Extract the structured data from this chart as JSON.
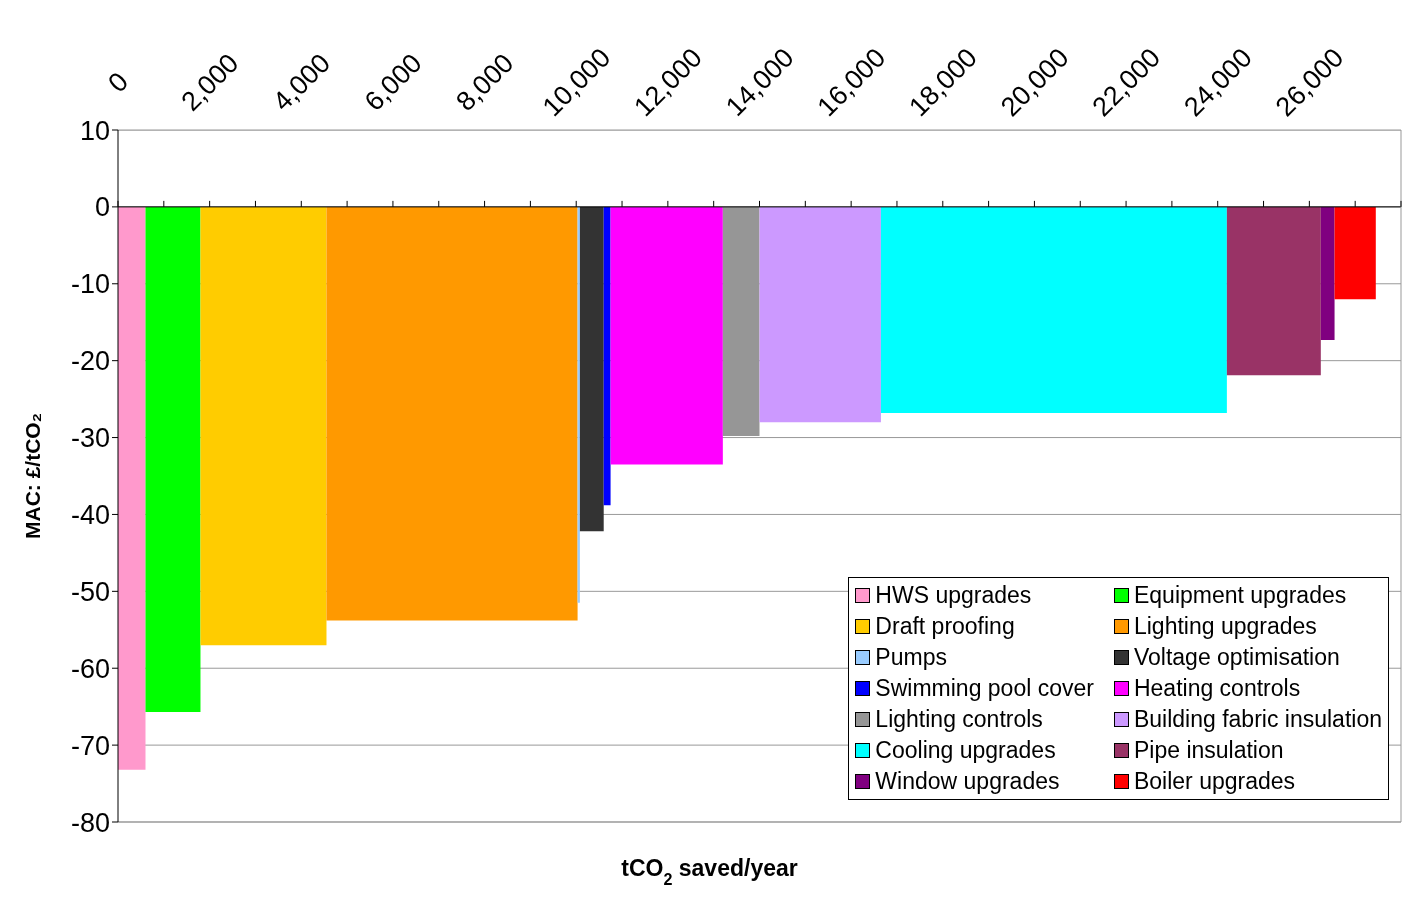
{
  "chart_data": {
    "type": "area",
    "xlabel": "tCO$_{2}$ saved/year",
    "ylabel": "MAC: £/tCO₂",
    "xlim": [
      0,
      28000
    ],
    "xticks": [
      0,
      {
        "value": 1000,
        "label": null
      },
      {
        "value": 2000,
        "label": "2,000"
      },
      {
        "value": 3000,
        "label": null
      },
      {
        "value": 4000,
        "label": "4,000"
      },
      {
        "value": 5000,
        "label": null
      },
      {
        "value": 6000,
        "label": "6,000"
      },
      {
        "value": 7000,
        "label": null
      },
      {
        "value": 8000,
        "label": "8,000"
      },
      {
        "value": 9000,
        "label": null
      },
      {
        "value": 10000,
        "label": "10,000"
      },
      {
        "value": 11000,
        "label": null
      },
      {
        "value": 12000,
        "label": "12,000"
      },
      {
        "value": 13000,
        "label": null
      },
      {
        "value": 14000,
        "label": "14,000"
      },
      {
        "value": 15000,
        "label": null
      },
      {
        "value": 16000,
        "label": "16,000"
      },
      {
        "value": 17000,
        "label": null
      },
      {
        "value": 18000,
        "label": "18,000"
      },
      {
        "value": 19000,
        "label": null
      },
      {
        "value": 20000,
        "label": "20,000"
      },
      {
        "value": 21000,
        "label": null
      },
      {
        "value": 22000,
        "label": "22,000"
      },
      {
        "value": 23000,
        "label": null
      },
      {
        "value": 24000,
        "label": "24,000"
      },
      {
        "value": 25000,
        "label": null
      },
      {
        "value": 26000,
        "label": "26,000"
      },
      {
        "value": 27000,
        "label": null
      },
      {
        "value": 28000,
        "label": null
      }
    ],
    "ylim": [
      -80,
      10
    ],
    "yticks": [
      -80,
      -70,
      -60,
      -50,
      -40,
      -30,
      -20,
      -10,
      0,
      10
    ],
    "grid": "y",
    "legend": "bottom right",
    "series": [
      {
        "name": "HWS upgrades",
        "color": "#ff99cc",
        "x": [
          0,
          600
        ],
        "values": [
          -73.2,
          -73.2
        ]
      },
      {
        "name": "Equipment upgrades",
        "color": "#00ff00",
        "x": [
          600,
          1800
        ],
        "values": [
          -65.7,
          -65.7
        ]
      },
      {
        "name": "Draft proofing",
        "color": "#ffcc00",
        "x": [
          1800,
          4550
        ],
        "values": [
          -57,
          -57
        ]
      },
      {
        "name": "Lighting upgrades",
        "color": "#ff9900",
        "x": [
          4550,
          10030
        ],
        "values": [
          -53.8,
          -53.8
        ]
      },
      {
        "name": "Pumps",
        "color": "#99ccff",
        "x": [
          10030,
          10080
        ],
        "values": [
          -51.5,
          -51.5
        ]
      },
      {
        "name": "Voltage optimisation",
        "color": "#333333",
        "x": [
          10080,
          10600
        ],
        "values": [
          -42.2,
          -42.2
        ]
      },
      {
        "name": "Swimming pool cover",
        "color": "#0000ff",
        "x": [
          10600,
          10750
        ],
        "values": [
          -38.8,
          -38.8
        ]
      },
      {
        "name": "Heating controls",
        "color": "#ff00ff",
        "x": [
          10750,
          13200
        ],
        "values": [
          -33.5,
          -33.5
        ]
      },
      {
        "name": "Lighting controls",
        "color": "#969696",
        "x": [
          13200,
          14000
        ],
        "values": [
          -29.8,
          -29.8
        ]
      },
      {
        "name": "Building fabric insulation",
        "color": "#cc99ff",
        "x": [
          14000,
          16650
        ],
        "values": [
          -28,
          -28
        ]
      },
      {
        "name": "Cooling upgrades",
        "color": "#00ffff",
        "x": [
          16650,
          24200
        ],
        "values": [
          -26.8,
          -26.8
        ]
      },
      {
        "name": "Pipe insulation",
        "color": "#993366",
        "x": [
          24200,
          26250
        ],
        "values": [
          -21.9,
          -21.9
        ]
      },
      {
        "name": "Window upgrades",
        "color": "#800080",
        "x": [
          26250,
          26550
        ],
        "values": [
          -17.3,
          -17.3
        ]
      },
      {
        "name": "Boiler upgrades",
        "color": "#ff0000",
        "x": [
          26550,
          27450
        ],
        "values": [
          -12,
          -12
        ]
      }
    ]
  }
}
